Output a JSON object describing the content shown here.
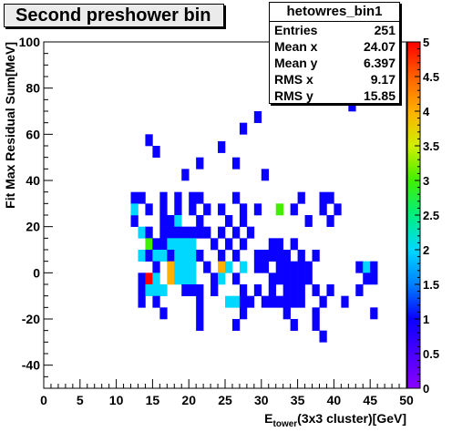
{
  "title": "Second preshower bin",
  "stats": {
    "name": "hetowres_bin1",
    "rows": [
      {
        "label": "Entries",
        "value": "251"
      },
      {
        "label": "Mean x",
        "value": "24.07"
      },
      {
        "label": "Mean y",
        "value": "6.397"
      },
      {
        "label": "RMS x",
        "value": "9.17"
      },
      {
        "label": "RMS y",
        "value": "15.85"
      }
    ]
  },
  "chart_data": {
    "type": "heatmap",
    "title": "Second preshower bin",
    "xlabel_main": "E",
    "xlabel_sub": "tower",
    "xlabel_rest": "(3x3 cluster)[GeV]",
    "ylabel": "Fit Max Residual Sum[MeV]",
    "xlim": [
      0,
      50
    ],
    "ylim": [
      -50,
      100
    ],
    "x_ticks": [
      0,
      5,
      10,
      15,
      20,
      25,
      30,
      35,
      40,
      45,
      50
    ],
    "y_ticks": [
      -40,
      -20,
      0,
      20,
      40,
      60,
      80,
      100
    ],
    "z_ticks": [
      "0",
      "0.5",
      "1",
      "1.5",
      "2",
      "2.5",
      "3",
      "3.5",
      "4",
      "4.5",
      "5"
    ],
    "zlim": [
      0,
      5
    ],
    "bin_width_x": 1,
    "bin_width_y": 5,
    "grid": false,
    "cells": [
      [
        12,
        20,
        1
      ],
      [
        12,
        30,
        1
      ],
      [
        13,
        30,
        1
      ],
      [
        14,
        55,
        1
      ],
      [
        15,
        50,
        1
      ],
      [
        19,
        40,
        1
      ],
      [
        21,
        45,
        1
      ],
      [
        24,
        52,
        1
      ],
      [
        27,
        60,
        1
      ],
      [
        29,
        65,
        1
      ],
      [
        26,
        45,
        1
      ],
      [
        30,
        40,
        1
      ],
      [
        42,
        70,
        1
      ],
      [
        12,
        25,
        2
      ],
      [
        14,
        25,
        1
      ],
      [
        16,
        30,
        1
      ],
      [
        18,
        30,
        1
      ],
      [
        20,
        30,
        1
      ],
      [
        21,
        30,
        1
      ],
      [
        26,
        30,
        1
      ],
      [
        35,
        30,
        1
      ],
      [
        38,
        30,
        1
      ],
      [
        39,
        30,
        1
      ],
      [
        32,
        25,
        3
      ],
      [
        16,
        25,
        1
      ],
      [
        18,
        25,
        1
      ],
      [
        20,
        25,
        1
      ],
      [
        22,
        25,
        1
      ],
      [
        24,
        25,
        1
      ],
      [
        27,
        25,
        1
      ],
      [
        29,
        25,
        1
      ],
      [
        34,
        25,
        1
      ],
      [
        38,
        25,
        1
      ],
      [
        40,
        25,
        1
      ],
      [
        16,
        20,
        1
      ],
      [
        17,
        20,
        1
      ],
      [
        18,
        20,
        2
      ],
      [
        21,
        20,
        1
      ],
      [
        25,
        20,
        1
      ],
      [
        27,
        20,
        1
      ],
      [
        36,
        20,
        1
      ],
      [
        39,
        20,
        1
      ],
      [
        13,
        15,
        2
      ],
      [
        14,
        15,
        1
      ],
      [
        16,
        15,
        1
      ],
      [
        17,
        15,
        1
      ],
      [
        18,
        15,
        1
      ],
      [
        19,
        15,
        1
      ],
      [
        20,
        15,
        1
      ],
      [
        21,
        15,
        1
      ],
      [
        22,
        15,
        1
      ],
      [
        24,
        15,
        1
      ],
      [
        26,
        15,
        1
      ],
      [
        28,
        15,
        1
      ],
      [
        14,
        10,
        3
      ],
      [
        15,
        10,
        1
      ],
      [
        16,
        10,
        1
      ],
      [
        17,
        10,
        2
      ],
      [
        18,
        10,
        2
      ],
      [
        19,
        10,
        2
      ],
      [
        20,
        10,
        2
      ],
      [
        23,
        10,
        1
      ],
      [
        25,
        10,
        1
      ],
      [
        27,
        10,
        1
      ],
      [
        31,
        10,
        1
      ],
      [
        32,
        10,
        1
      ],
      [
        34,
        10,
        1
      ],
      [
        13,
        5,
        2
      ],
      [
        14,
        5,
        1
      ],
      [
        15,
        5,
        2
      ],
      [
        16,
        5,
        2
      ],
      [
        17,
        5,
        1
      ],
      [
        18,
        5,
        2
      ],
      [
        19,
        5,
        2
      ],
      [
        20,
        5,
        2
      ],
      [
        21,
        5,
        1
      ],
      [
        24,
        5,
        1
      ],
      [
        26,
        5,
        1
      ],
      [
        29,
        5,
        1
      ],
      [
        30,
        5,
        1
      ],
      [
        31,
        5,
        1
      ],
      [
        32,
        5,
        1
      ],
      [
        33,
        5,
        1
      ],
      [
        35,
        5,
        1
      ],
      [
        37,
        5,
        1
      ],
      [
        15,
        0,
        1
      ],
      [
        17,
        0,
        4
      ],
      [
        18,
        0,
        2
      ],
      [
        19,
        0,
        2
      ],
      [
        20,
        0,
        2
      ],
      [
        22,
        0,
        1
      ],
      [
        24,
        0,
        4
      ],
      [
        25,
        0,
        2
      ],
      [
        27,
        0,
        2
      ],
      [
        29,
        0,
        1
      ],
      [
        30,
        0,
        1
      ],
      [
        32,
        0,
        1
      ],
      [
        33,
        0,
        1
      ],
      [
        34,
        0,
        1
      ],
      [
        35,
        0,
        1
      ],
      [
        36,
        0,
        1
      ],
      [
        43,
        0,
        1
      ],
      [
        44,
        0,
        2
      ],
      [
        45,
        0,
        1
      ],
      [
        13,
        -5,
        1
      ],
      [
        14,
        -5,
        5
      ],
      [
        15,
        -5,
        2
      ],
      [
        17,
        -5,
        4
      ],
      [
        18,
        -5,
        2
      ],
      [
        19,
        -5,
        2
      ],
      [
        20,
        -5,
        2
      ],
      [
        23,
        -5,
        1
      ],
      [
        24,
        -5,
        2
      ],
      [
        26,
        -5,
        1
      ],
      [
        31,
        -5,
        1
      ],
      [
        32,
        -5,
        1
      ],
      [
        33,
        -5,
        1
      ],
      [
        34,
        -5,
        1
      ],
      [
        35,
        -5,
        1
      ],
      [
        36,
        -5,
        1
      ],
      [
        44,
        -5,
        1
      ],
      [
        45,
        -5,
        1
      ],
      [
        13,
        -10,
        1
      ],
      [
        14,
        -10,
        2
      ],
      [
        15,
        -10,
        2
      ],
      [
        16,
        -10,
        2
      ],
      [
        19,
        -10,
        1
      ],
      [
        20,
        -10,
        1
      ],
      [
        21,
        -10,
        1
      ],
      [
        23,
        -10,
        1
      ],
      [
        27,
        -10,
        1
      ],
      [
        29,
        -10,
        1
      ],
      [
        31,
        -10,
        1
      ],
      [
        33,
        -10,
        1
      ],
      [
        34,
        -10,
        1
      ],
      [
        35,
        -10,
        1
      ],
      [
        37,
        -10,
        1
      ],
      [
        39,
        -10,
        1
      ],
      [
        43,
        -10,
        1
      ],
      [
        13,
        -15,
        1
      ],
      [
        15,
        -15,
        1
      ],
      [
        21,
        -15,
        1
      ],
      [
        25,
        -15,
        2
      ],
      [
        26,
        -15,
        2
      ],
      [
        27,
        -15,
        1
      ],
      [
        28,
        -15,
        1
      ],
      [
        30,
        -15,
        1
      ],
      [
        31,
        -15,
        1
      ],
      [
        32,
        -15,
        1
      ],
      [
        33,
        -15,
        1
      ],
      [
        34,
        -15,
        1
      ],
      [
        35,
        -15,
        1
      ],
      [
        38,
        -15,
        1
      ],
      [
        41,
        -15,
        1
      ],
      [
        16,
        -20,
        1
      ],
      [
        21,
        -20,
        1
      ],
      [
        27,
        -20,
        1
      ],
      [
        33,
        -20,
        1
      ],
      [
        37,
        -20,
        1
      ],
      [
        45,
        -20,
        1
      ],
      [
        21,
        -25,
        1
      ],
      [
        26,
        -25,
        1
      ],
      [
        34,
        -25,
        1
      ],
      [
        37,
        -25,
        1
      ],
      [
        38,
        -30,
        1
      ]
    ]
  }
}
